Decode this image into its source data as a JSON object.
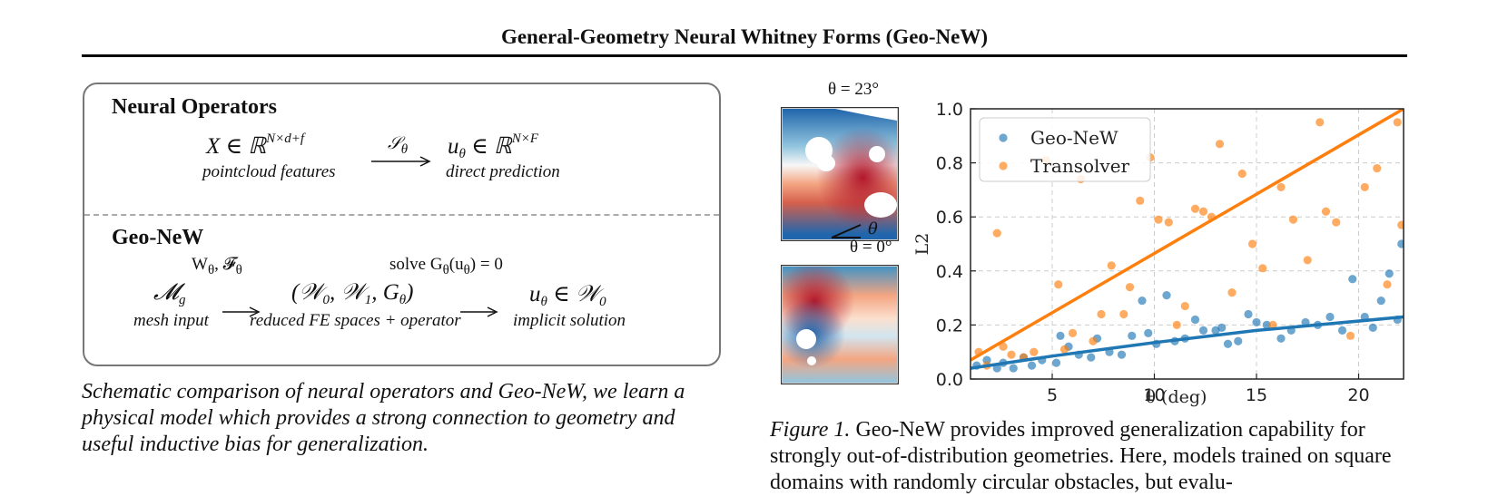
{
  "header": {
    "title": "General-Geometry Neural Whitney Forms (Geo-NeW)"
  },
  "schematic": {
    "neural_operators": {
      "title": "Neural Operators",
      "input_math": "X ∈ ℝ",
      "input_sup": "N×d+f",
      "input_label": "pointcloud features",
      "operator": "𝒮",
      "operator_sub": "θ",
      "output_math": "u",
      "output_sub": "θ",
      "output_rest": " ∈ ℝ",
      "output_sup": "N×F",
      "output_label": "direct prediction"
    },
    "geo_new": {
      "title": "Geo-NeW",
      "params": "W",
      "params_sub": "θ",
      "params_rest": ",  𝓕",
      "params_sub2": "θ",
      "solve_prefix": "solve  G",
      "solve_sub": "θ",
      "solve_rest": "(u",
      "solve_sub2": "θ",
      "solve_end": ") = 0",
      "input_math": "𝓜",
      "input_sub": "g",
      "input_label": "mesh input",
      "middle_math": "(𝒲",
      "middle_sub0": "0",
      "middle_mid": ", 𝒲",
      "middle_sub1": "1",
      "middle_mid2": ", G",
      "middle_sub2": "θ",
      "middle_end": ")",
      "middle_label": "reduced FE spaces + operator",
      "output_math": "u",
      "output_sub": "θ",
      "output_rest": " ∈ 𝒲",
      "output_sub2": "0",
      "output_label": "implicit solution"
    }
  },
  "left_caption": "Schematic comparison of neural operators and Geo-NeW, we learn a physical model which provides a strong connection to geometry and useful inductive bias for generalization.",
  "thumbnails": {
    "top_label": "θ = 23°",
    "angle_symbol": "θ",
    "bottom_label": "θ = 0°"
  },
  "figure_caption": {
    "label": "Figure 1.",
    "text": " Geo-NeW provides improved generalization capability for strongly out-of-distribution geometries. Here, models trained on square domains with randomly circular obstacles, but evalu-"
  },
  "chart_data": {
    "type": "scatter",
    "xlabel": "θ (deg)",
    "ylabel": "L2",
    "xlim": [
      1,
      22.2
    ],
    "ylim": [
      0,
      1.0
    ],
    "xticks": [
      5,
      10,
      15,
      20
    ],
    "yticks": [
      0.0,
      0.2,
      0.4,
      0.6,
      0.8,
      1.0
    ],
    "ytick_labels": [
      "0.0",
      "0.2",
      "0.4",
      "0.6",
      "0.8",
      "1.0"
    ],
    "grid": true,
    "legend": "top-left",
    "series": [
      {
        "name": "Geo-NeW",
        "color": "#1f77b4",
        "x": [
          1.3,
          1.8,
          2.3,
          2.6,
          3.1,
          3.6,
          4.0,
          4.5,
          5.2,
          5.4,
          5.8,
          6.3,
          6.9,
          7.2,
          7.8,
          8.4,
          8.9,
          9.4,
          9.7,
          10.1,
          10.6,
          11.0,
          11.5,
          12.0,
          12.4,
          13.0,
          13.3,
          13.6,
          14.1,
          14.6,
          15.0,
          15.5,
          16.2,
          16.7,
          17.4,
          18.0,
          18.6,
          19.2,
          19.7,
          20.3,
          20.7,
          21.1,
          21.5,
          21.9,
          22.1
        ],
        "y": [
          0.05,
          0.07,
          0.04,
          0.06,
          0.04,
          0.08,
          0.05,
          0.07,
          0.06,
          0.16,
          0.12,
          0.09,
          0.08,
          0.15,
          0.1,
          0.09,
          0.16,
          0.29,
          0.17,
          0.13,
          0.31,
          0.14,
          0.15,
          0.22,
          0.18,
          0.18,
          0.19,
          0.13,
          0.14,
          0.24,
          0.21,
          0.2,
          0.15,
          0.18,
          0.21,
          0.2,
          0.23,
          0.18,
          0.37,
          0.23,
          0.19,
          0.29,
          0.39,
          0.22,
          0.5
        ],
        "trend": [
          [
            1.0,
            0.04
          ],
          [
            5.0,
            0.085
          ],
          [
            10.0,
            0.135
          ],
          [
            15.0,
            0.18
          ],
          [
            22.2,
            0.23
          ]
        ]
      },
      {
        "name": "Transolver",
        "color": "#ff7f0e",
        "x": [
          1.4,
          1.8,
          2.3,
          2.6,
          3.0,
          3.6,
          4.1,
          4.7,
          5.3,
          5.6,
          6.0,
          6.4,
          7.0,
          7.4,
          7.9,
          8.5,
          8.8,
          9.3,
          9.8,
          10.2,
          10.7,
          11.1,
          11.5,
          12.0,
          12.4,
          12.8,
          13.2,
          13.8,
          14.3,
          14.8,
          15.3,
          15.8,
          16.2,
          16.8,
          17.5,
          18.1,
          18.4,
          18.9,
          19.6,
          20.3,
          20.9,
          21.4,
          21.9,
          22.1
        ],
        "y": [
          0.1,
          0.05,
          0.54,
          0.12,
          0.09,
          0.08,
          0.1,
          0.81,
          0.35,
          0.11,
          0.17,
          0.74,
          0.14,
          0.24,
          0.42,
          0.24,
          0.34,
          0.66,
          0.82,
          0.59,
          0.58,
          0.2,
          0.27,
          0.63,
          0.62,
          0.6,
          0.87,
          0.32,
          0.76,
          0.5,
          0.41,
          0.2,
          0.71,
          0.59,
          0.44,
          0.95,
          0.62,
          0.58,
          0.16,
          0.71,
          0.78,
          0.35,
          0.95,
          0.57
        ],
        "trend": [
          [
            1.0,
            0.07
          ],
          [
            22.2,
            1.0
          ]
        ]
      }
    ]
  }
}
